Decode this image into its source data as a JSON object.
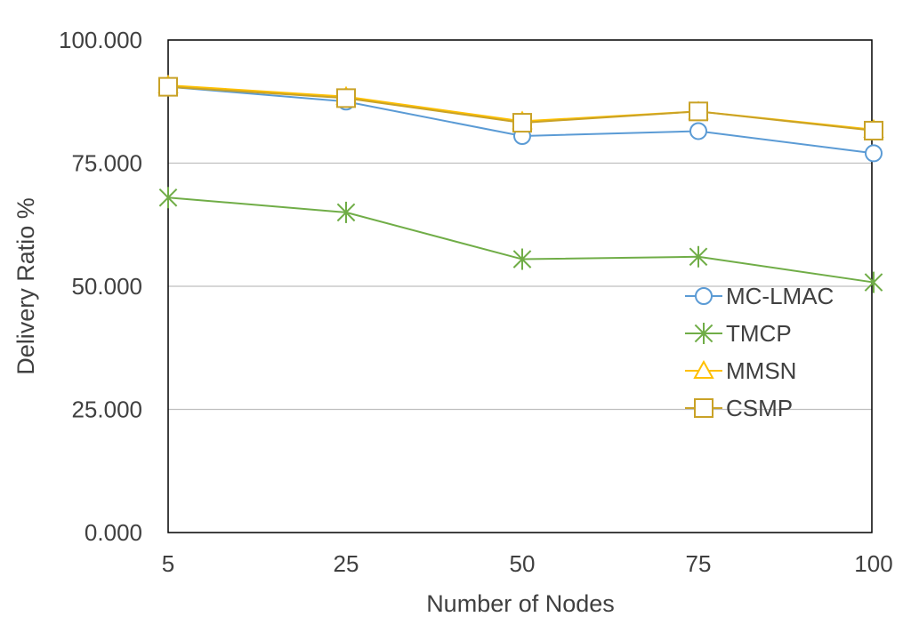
{
  "chart_data": {
    "type": "line",
    "title": "",
    "xlabel": "Number of Nodes",
    "ylabel": "Delivery Ratio %",
    "categories": [
      "5",
      "25",
      "50",
      "75",
      "100"
    ],
    "ylim": [
      0,
      100
    ],
    "yticks": [
      0,
      25,
      50,
      75,
      100
    ],
    "ytick_labels": [
      "0.000",
      "25.000",
      "50.000",
      "75.000",
      "100.000"
    ],
    "grid": "horizontal",
    "legend_position": "right",
    "series": [
      {
        "name": "MC-LMAC",
        "marker": "circle",
        "color": "#5b9bd5",
        "values": [
          90.5,
          87.5,
          80.5,
          81.5,
          77.0
        ]
      },
      {
        "name": "TMCP",
        "marker": "asterisk",
        "color": "#70ad47",
        "values": [
          68.0,
          65.0,
          55.5,
          56.0,
          50.8
        ]
      },
      {
        "name": "MMSN",
        "marker": "triangle",
        "color": "#ffc000",
        "values": [
          90.8,
          88.5,
          83.5,
          85.5,
          81.8
        ]
      },
      {
        "name": "CSMP",
        "marker": "square",
        "color": "#c9a227",
        "values": [
          90.5,
          88.2,
          83.2,
          85.5,
          81.6
        ]
      }
    ]
  }
}
